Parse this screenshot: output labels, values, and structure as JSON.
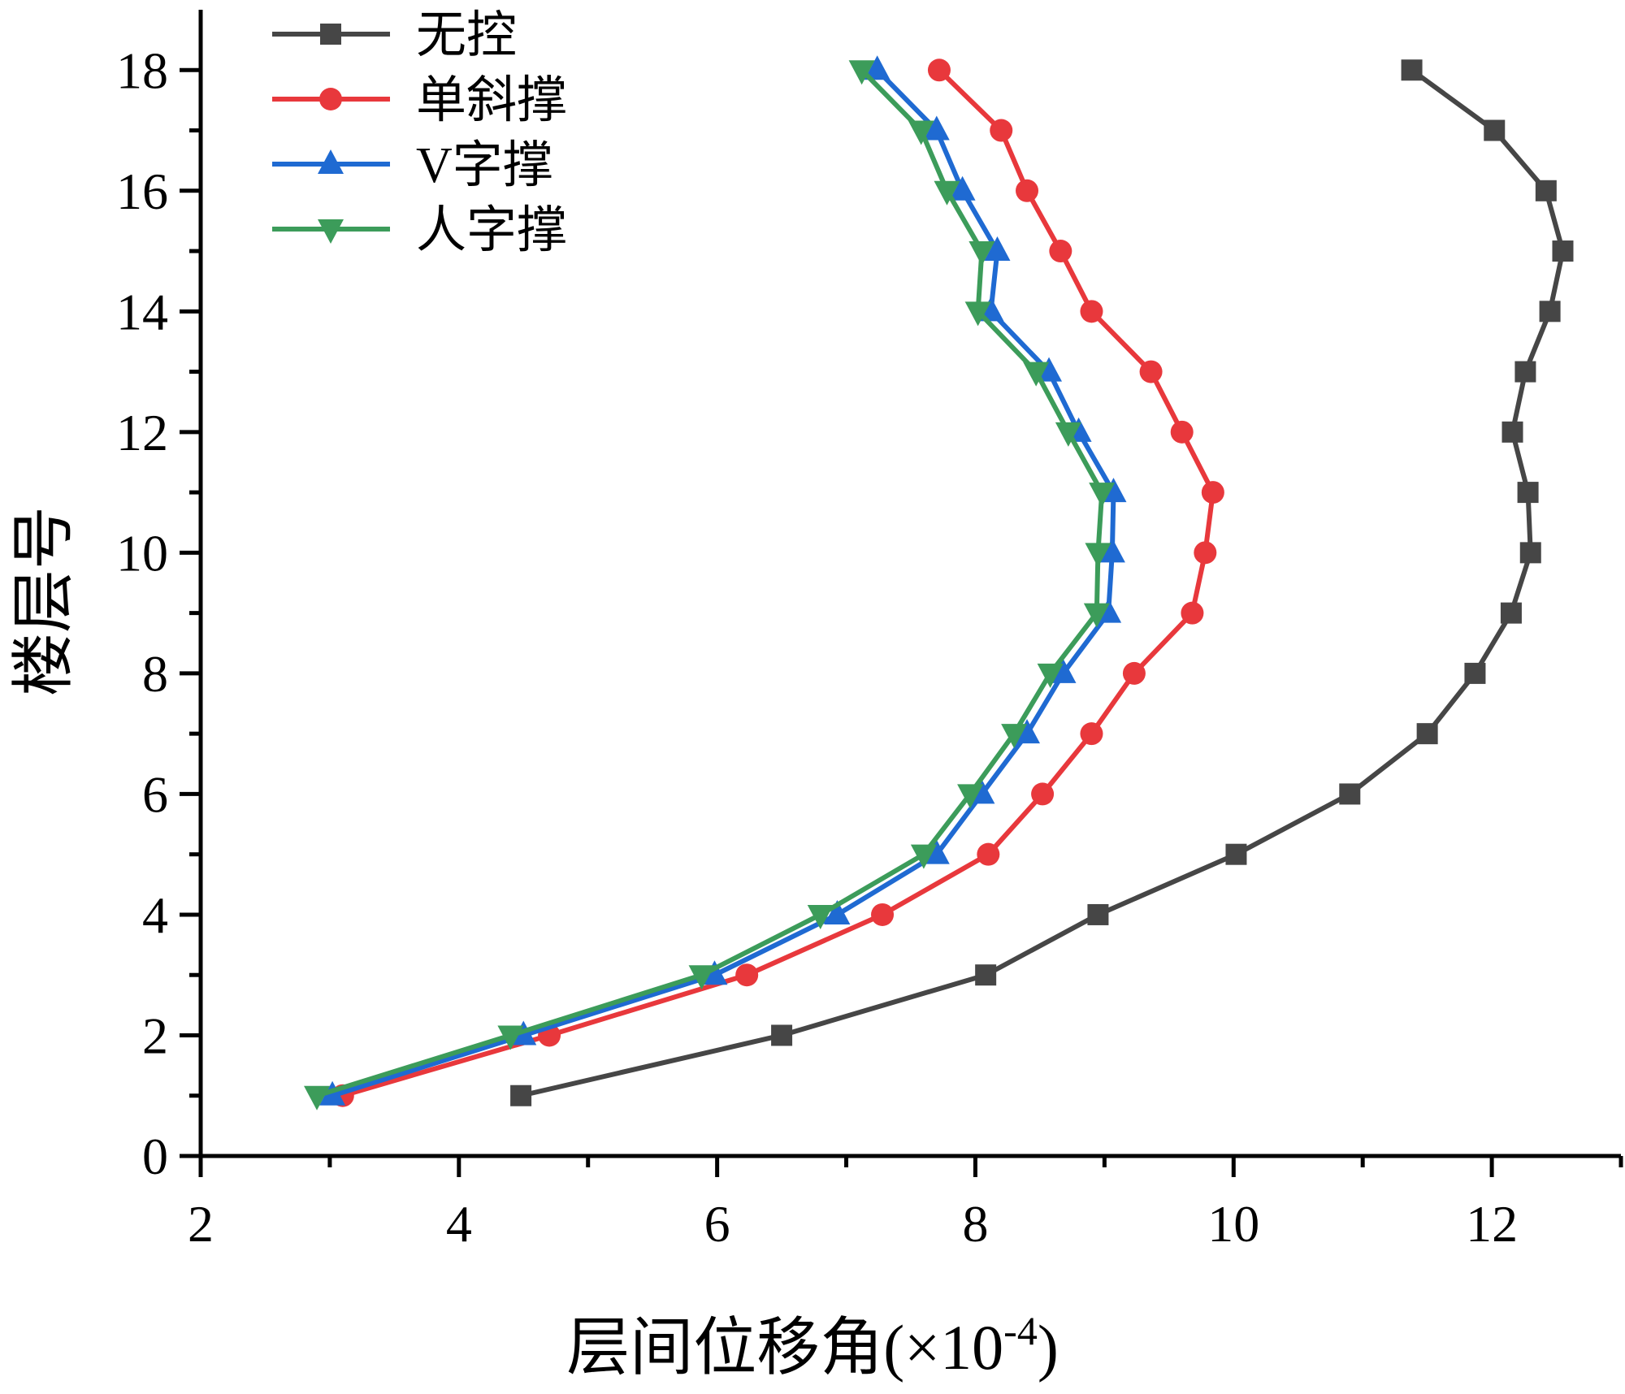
{
  "chart_data": {
    "type": "line",
    "xlabel": "层间位移角",
    "xlabel_unit_base": "(×10",
    "xlabel_unit_exp": "-4",
    "xlabel_unit_close": ")",
    "ylabel": "楼层号",
    "xlim": [
      2,
      13
    ],
    "ylim": [
      0,
      19
    ],
    "x_ticks": [
      2,
      4,
      6,
      8,
      10,
      12
    ],
    "x_minor_ticks": [
      3,
      5,
      7,
      9,
      11,
      13
    ],
    "y_ticks": [
      0,
      2,
      4,
      6,
      8,
      10,
      12,
      14,
      16,
      18
    ],
    "y_minor_ticks": [
      1,
      3,
      5,
      7,
      9,
      11,
      13,
      15,
      17
    ],
    "grid": false,
    "legend_position": "top-left",
    "series": [
      {
        "name": "无控",
        "color": "#464646",
        "marker": "square",
        "points": [
          [
            4.48,
            1
          ],
          [
            6.5,
            2
          ],
          [
            8.08,
            3
          ],
          [
            8.95,
            4
          ],
          [
            10.02,
            5
          ],
          [
            10.9,
            6
          ],
          [
            11.5,
            7
          ],
          [
            11.87,
            8
          ],
          [
            12.15,
            9
          ],
          [
            12.3,
            10
          ],
          [
            12.28,
            11
          ],
          [
            12.16,
            12
          ],
          [
            12.26,
            13
          ],
          [
            12.45,
            14
          ],
          [
            12.55,
            15
          ],
          [
            12.42,
            16
          ],
          [
            12.02,
            17
          ],
          [
            11.38,
            18
          ]
        ]
      },
      {
        "name": "单斜撑",
        "color": "#e8383c",
        "marker": "circle",
        "points": [
          [
            3.1,
            1
          ],
          [
            4.7,
            2
          ],
          [
            6.23,
            3
          ],
          [
            7.28,
            4
          ],
          [
            8.1,
            5
          ],
          [
            8.52,
            6
          ],
          [
            8.9,
            7
          ],
          [
            9.23,
            8
          ],
          [
            9.68,
            9
          ],
          [
            9.78,
            10
          ],
          [
            9.84,
            11
          ],
          [
            9.6,
            12
          ],
          [
            9.36,
            13
          ],
          [
            8.9,
            14
          ],
          [
            8.66,
            15
          ],
          [
            8.4,
            16
          ],
          [
            8.2,
            17
          ],
          [
            7.72,
            18
          ]
        ]
      },
      {
        "name": "V字撑",
        "color": "#1f6ad2",
        "marker": "triangle-up",
        "points": [
          [
            3.02,
            1
          ],
          [
            4.5,
            2
          ],
          [
            5.98,
            3
          ],
          [
            6.93,
            4
          ],
          [
            7.7,
            5
          ],
          [
            8.05,
            6
          ],
          [
            8.4,
            7
          ],
          [
            8.68,
            8
          ],
          [
            9.03,
            9
          ],
          [
            9.06,
            10
          ],
          [
            9.07,
            11
          ],
          [
            8.8,
            12
          ],
          [
            8.57,
            13
          ],
          [
            8.12,
            14
          ],
          [
            8.17,
            15
          ],
          [
            7.9,
            16
          ],
          [
            7.7,
            17
          ],
          [
            7.24,
            18
          ]
        ]
      },
      {
        "name": "人字撑",
        "color": "#3c9c5a",
        "marker": "triangle-down",
        "points": [
          [
            2.9,
            1
          ],
          [
            4.4,
            2
          ],
          [
            5.88,
            3
          ],
          [
            6.8,
            4
          ],
          [
            7.6,
            5
          ],
          [
            7.96,
            6
          ],
          [
            8.3,
            7
          ],
          [
            8.58,
            8
          ],
          [
            8.94,
            9
          ],
          [
            8.95,
            10
          ],
          [
            8.98,
            11
          ],
          [
            8.72,
            12
          ],
          [
            8.47,
            13
          ],
          [
            8.02,
            14
          ],
          [
            8.05,
            15
          ],
          [
            7.78,
            16
          ],
          [
            7.58,
            17
          ],
          [
            7.12,
            18
          ]
        ]
      }
    ]
  }
}
